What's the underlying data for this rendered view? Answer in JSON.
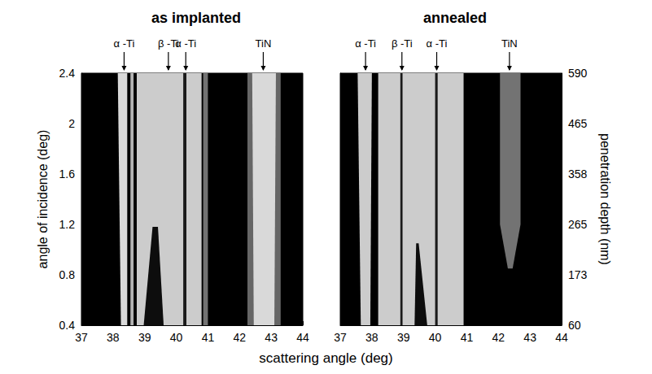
{
  "chart_data": {
    "type": "heatmap",
    "xlabel": "scattering angle (deg)",
    "ylabel": "angle of incidence (deg)",
    "y2label": "penetration depth (nm)",
    "xlim": [
      37,
      44
    ],
    "xticks": [
      37,
      38,
      39,
      40,
      41,
      42,
      43,
      44
    ],
    "ylim": [
      0.4,
      2.4
    ],
    "yticks": [
      0.4,
      0.8,
      1.2,
      1.6,
      2,
      2.4
    ],
    "y2ticks": [
      60,
      173,
      265,
      358,
      465,
      590
    ],
    "panels": [
      {
        "title": "as implanted",
        "annotations": [
          {
            "text": "α -Ti",
            "x": 38.35
          },
          {
            "text": "β -Ti",
            "x": 39.75
          },
          {
            "text": "α -Ti",
            "x": 40.3
          },
          {
            "text": "TiN",
            "x": 42.75
          }
        ],
        "regions": [
          {
            "points": [
              [
                38.15,
                2.4
              ],
              [
                38.45,
                2.4
              ],
              [
                38.45,
                0.4
              ],
              [
                38.25,
                0.4
              ]
            ],
            "intensity": 0.85
          },
          {
            "points": [
              [
                38.55,
                2.4
              ],
              [
                38.65,
                2.4
              ],
              [
                38.65,
                0.4
              ],
              [
                38.55,
                0.4
              ]
            ],
            "intensity": 0.7
          },
          {
            "points": [
              [
                38.75,
                2.4
              ],
              [
                40.8,
                2.4
              ],
              [
                40.8,
                0.4
              ],
              [
                38.75,
                0.4
              ]
            ],
            "intensity": 0.8
          },
          {
            "points": [
              [
                38.97,
                0.4
              ],
              [
                39.25,
                1.18
              ],
              [
                39.42,
                1.18
              ],
              [
                39.6,
                0.4
              ]
            ],
            "intensity": 0.05
          },
          {
            "points": [
              [
                40.22,
                2.4
              ],
              [
                40.32,
                2.4
              ],
              [
                40.32,
                0.4
              ],
              [
                40.22,
                0.4
              ]
            ],
            "intensity": 0.1
          },
          {
            "points": [
              [
                40.85,
                2.4
              ],
              [
                41,
                2.4
              ],
              [
                41,
                0.4
              ],
              [
                40.85,
                0.4
              ]
            ],
            "intensity": 0.45
          },
          {
            "points": [
              [
                42.25,
                2.4
              ],
              [
                43.3,
                2.4
              ],
              [
                43.3,
                0.4
              ],
              [
                42.25,
                0.4
              ]
            ],
            "intensity": 0.4
          },
          {
            "points": [
              [
                42.4,
                2.4
              ],
              [
                43.15,
                2.4
              ],
              [
                43.1,
                0.4
              ],
              [
                42.45,
                0.4
              ]
            ],
            "intensity": 0.85
          }
        ]
      },
      {
        "title": "annealed",
        "annotations": [
          {
            "text": "α -Ti",
            "x": 37.8
          },
          {
            "text": "β -Ti",
            "x": 38.95
          },
          {
            "text": "α -Ti",
            "x": 40.05
          },
          {
            "text": "TiN",
            "x": 42.35
          }
        ],
        "regions": [
          {
            "points": [
              [
                37.55,
                2.4
              ],
              [
                38,
                2.4
              ],
              [
                37.95,
                0.4
              ],
              [
                37.65,
                0.4
              ]
            ],
            "intensity": 0.8
          },
          {
            "points": [
              [
                38.2,
                2.4
              ],
              [
                40.9,
                2.4
              ],
              [
                40.9,
                0.4
              ],
              [
                38.2,
                0.4
              ]
            ],
            "intensity": 0.8
          },
          {
            "points": [
              [
                38.9,
                2.4
              ],
              [
                38.97,
                2.4
              ],
              [
                38.97,
                0.4
              ],
              [
                38.9,
                0.4
              ]
            ],
            "intensity": 0.1
          },
          {
            "points": [
              [
                39.35,
                0.4
              ],
              [
                39.4,
                1.05
              ],
              [
                39.48,
                1.05
              ],
              [
                39.75,
                0.4
              ]
            ],
            "intensity": 0.05
          },
          {
            "points": [
              [
                40,
                2.4
              ],
              [
                40.08,
                2.4
              ],
              [
                40.08,
                0.4
              ],
              [
                40,
                0.4
              ]
            ],
            "intensity": 0.1
          },
          {
            "points": [
              [
                42.05,
                2.4
              ],
              [
                42.7,
                2.4
              ],
              [
                42.7,
                1.2
              ],
              [
                42.45,
                0.85
              ],
              [
                42.3,
                0.85
              ],
              [
                42.05,
                1.2
              ]
            ],
            "intensity": 0.45
          }
        ]
      }
    ]
  }
}
